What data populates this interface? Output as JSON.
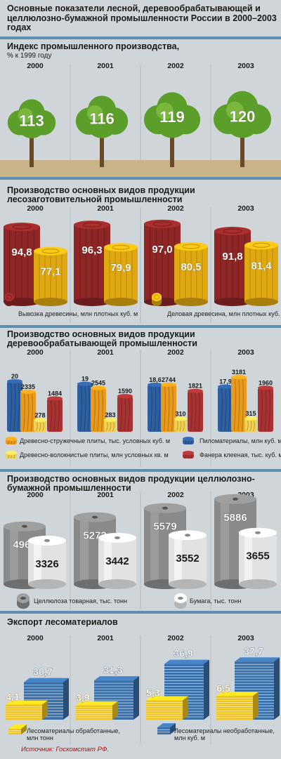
{
  "title": "Основные показатели лесной, деревообрабатывающей и целлюлозно-бумажной промышленности России в 2000–2003 годах",
  "source": "Источник: Госкомстат РФ.",
  "years": [
    "2000",
    "2001",
    "2002",
    "2003"
  ],
  "chart_data": [
    {
      "type": "bar",
      "title": "Индекс промышленного производства,",
      "subtitle": "% к 1999 году",
      "categories": [
        "2000",
        "2001",
        "2002",
        "2003"
      ],
      "series": [
        {
          "name": "",
          "values": [
            113,
            116,
            119,
            120
          ]
        }
      ],
      "display_values": [
        "113",
        "116",
        "119",
        "120"
      ]
    },
    {
      "type": "bar",
      "title": "Производство основных видов продукции лесозаготовительной промышленности",
      "categories": [
        "2000",
        "2001",
        "2002",
        "2003"
      ],
      "series": [
        {
          "name": "Вывозка древесины, млн плотных куб. м",
          "values": [
            94.8,
            96.3,
            97.0,
            91.8
          ],
          "labels": [
            "94,8",
            "96,3",
            "97,0",
            "91,8"
          ],
          "color": "#8e2626"
        },
        {
          "name": "Деловая древесина, млн плотных куб. м",
          "values": [
            77.1,
            79.9,
            80.5,
            81.4
          ],
          "labels": [
            "77,1",
            "79,9",
            "80,5",
            "81,4"
          ],
          "color": "#e0a810"
        }
      ]
    },
    {
      "type": "bar",
      "title": "Производство основных видов продукции деревообрабатывающей промышленности",
      "categories": [
        "2000",
        "2001",
        "2002",
        "2003"
      ],
      "series": [
        {
          "name": "Пиломатериалы, млн куб. м",
          "values": [
            20,
            19,
            18.6,
            17.9
          ],
          "labels": [
            "20",
            "19",
            "18,6",
            "17,9"
          ],
          "color": "#2e5fa0"
        },
        {
          "name": "Древесно-стружечные плиты, тыс. условных куб. м",
          "values": [
            2335,
            2545,
            2744,
            3181
          ],
          "labels": [
            "2335",
            "2545",
            "2744",
            "3181"
          ],
          "color": "#e99a1a"
        },
        {
          "name": "Древесно-волокнистые плиты, млн условных кв. м",
          "values": [
            278,
            283,
            310,
            315
          ],
          "labels": [
            "278",
            "283",
            "310",
            "315"
          ],
          "color": "#f3d050"
        },
        {
          "name": "Фанера клееная, тыс. куб. м",
          "values": [
            1484,
            1590,
            1821,
            1960
          ],
          "labels": [
            "1484",
            "1590",
            "1821",
            "1960"
          ],
          "color": "#a83232"
        }
      ]
    },
    {
      "type": "bar",
      "title": "Производство основных видов продукции целлюлозно-бумажной промышленности",
      "categories": [
        "2000",
        "2001",
        "2002",
        "2003"
      ],
      "series": [
        {
          "name": "Целлюлоза товарная, тыс. тонн",
          "values": [
            4960,
            5272,
            5579,
            5886
          ],
          "labels": [
            "4960",
            "5272",
            "5579",
            "5886"
          ],
          "color": "#8a8a8a"
        },
        {
          "name": "Бумага, тыс. тонн",
          "values": [
            3326,
            3442,
            3552,
            3655
          ],
          "labels": [
            "3326",
            "3442",
            "3552",
            "3655"
          ],
          "color": "#e2e2e2"
        }
      ]
    },
    {
      "type": "bar",
      "title": "Экспорт лесоматериалов",
      "categories": [
        "2000",
        "2001",
        "2002",
        "2003"
      ],
      "series": [
        {
          "name": "Лесоматериалы обработанные, млн тонн",
          "values": [
            4.1,
            3.9,
            5.3,
            6.5
          ],
          "labels": [
            "4,1",
            "3,9",
            "5,3",
            "6,5"
          ],
          "color": "#f0c31c"
        },
        {
          "name": "Лесоматериалы необработанные, млн куб. м",
          "values": [
            30.7,
            31.3,
            36.9,
            37.7
          ],
          "labels": [
            "30,7",
            "31,3",
            "36,9",
            "37,7"
          ],
          "color": "#3a6fa8"
        }
      ]
    }
  ]
}
